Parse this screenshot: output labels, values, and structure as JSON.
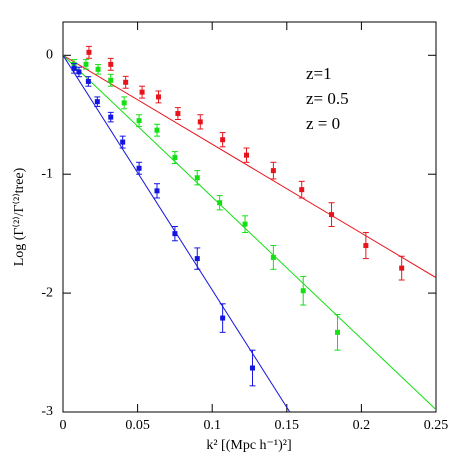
{
  "chart_data": {
    "type": "scatter",
    "xlabel": "k² [(Mpc h⁻¹)²]",
    "ylabel": "Log (Γ⁽²⁾/Γ⁽²⁾tree)",
    "xlim": [
      0,
      0.25
    ],
    "ylim": [
      -3,
      0.28
    ],
    "xticks": [
      0,
      0.05,
      0.1,
      0.15,
      0.2,
      0.25
    ],
    "yticks": [
      -3,
      -2,
      -1,
      0
    ],
    "series": [
      {
        "name": "z=1",
        "color": "#e8141c",
        "x": [
          0.0174,
          0.032,
          0.042,
          0.053,
          0.064,
          0.077,
          0.092,
          0.107,
          0.123,
          0.141,
          0.16,
          0.18,
          0.203,
          0.227
        ],
        "values": [
          0.025,
          -0.076,
          -0.227,
          -0.31,
          -0.35,
          -0.49,
          -0.56,
          -0.71,
          -0.84,
          -0.97,
          -1.13,
          -1.34,
          -1.6,
          -1.79
        ],
        "errors": [
          0.05,
          0.05,
          0.05,
          0.05,
          0.05,
          0.05,
          0.06,
          0.06,
          0.06,
          0.07,
          0.07,
          0.1,
          0.11,
          0.1
        ],
        "fit_x": [
          0,
          0.25
        ],
        "fit_values": [
          0,
          -1.87
        ]
      },
      {
        "name": "z=  0.5",
        "color": "#14e014",
        "x": [
          0.0074,
          0.0154,
          0.0235,
          0.032,
          0.041,
          0.051,
          0.063,
          0.075,
          0.09,
          0.105,
          0.122,
          0.141,
          0.161,
          0.184
        ],
        "values": [
          -0.076,
          -0.076,
          -0.118,
          -0.21,
          -0.4,
          -0.55,
          -0.63,
          -0.86,
          -1.03,
          -1.24,
          -1.42,
          -1.7,
          -1.98,
          -2.33
        ],
        "errors": [
          0.04,
          0.04,
          0.04,
          0.05,
          0.05,
          0.05,
          0.05,
          0.05,
          0.06,
          0.06,
          0.07,
          0.1,
          0.12,
          0.15
        ],
        "fit_x": [
          0,
          0.25
        ],
        "fit_values": [
          0,
          -2.98
        ]
      },
      {
        "name": "z  =  0",
        "color": "#1414e0",
        "x": [
          0.0074,
          0.0107,
          0.017,
          0.023,
          0.032,
          0.04,
          0.051,
          0.063,
          0.075,
          0.09,
          0.107,
          0.127
        ],
        "values": [
          -0.11,
          -0.14,
          -0.22,
          -0.39,
          -0.52,
          -0.73,
          -0.95,
          -1.14,
          -1.5,
          -1.71,
          -2.21,
          -2.63
        ],
        "errors": [
          0.04,
          0.04,
          0.04,
          0.04,
          0.04,
          0.05,
          0.05,
          0.06,
          0.06,
          0.09,
          0.12,
          0.15
        ],
        "fit_x": [
          0,
          0.152
        ],
        "fit_values": [
          0,
          -3
        ]
      }
    ]
  }
}
